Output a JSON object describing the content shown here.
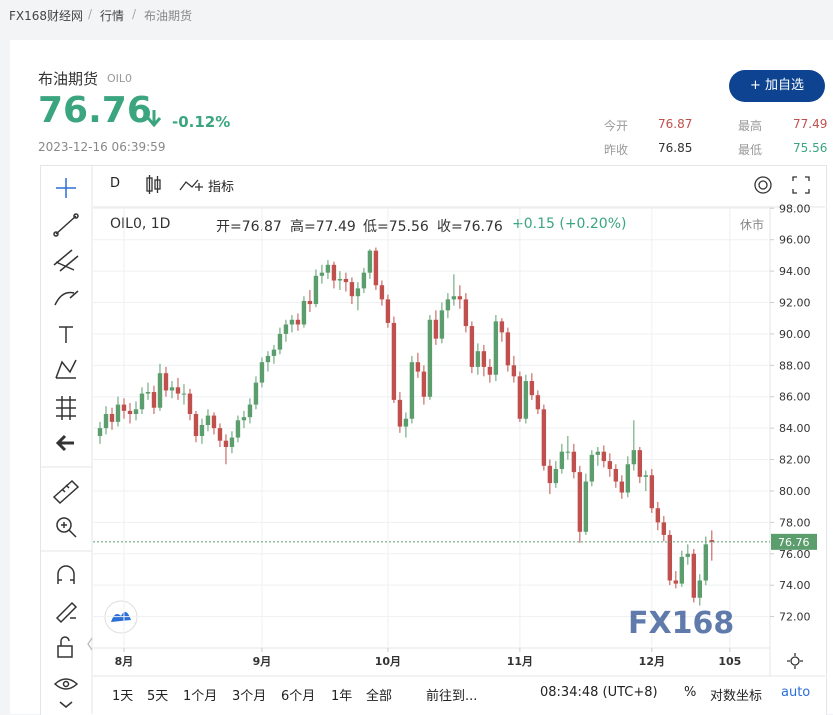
{
  "breadcrumb": [
    "FX168财经网",
    "行情",
    "布油期货"
  ],
  "quote": {
    "name": "布油期货",
    "code": "OIL0",
    "price": "76.76",
    "change": "-0.12%",
    "time": "2023-12-16 06:39:59",
    "button": "+ 加自选",
    "stats": [
      [
        "今开",
        "76.87"
      ],
      [
        "最高",
        "77.49"
      ],
      [
        "昨收",
        "76.85"
      ],
      [
        "最低",
        "75.56"
      ]
    ]
  },
  "toolbar": {
    "interval": "D",
    "indicators": "指标"
  },
  "chart_data": {
    "type": "candlestick",
    "symbol": "OIL0, 1D",
    "ohlc_legend": [
      "开=76.87",
      "高=77.49",
      "低=75.56",
      "收=76.76",
      "+0.15 (+0.20%)"
    ],
    "status": "休市",
    "watermark": "FX168",
    "up_color": "#5b9d6c",
    "down_color": "#c0504d",
    "price_line": 76.76,
    "candles": [
      [
        83.5,
        84.4,
        83.0,
        84.0
      ],
      [
        84.0,
        85.4,
        83.6,
        84.9
      ],
      [
        84.9,
        85.3,
        83.9,
        84.4
      ],
      [
        84.4,
        86.0,
        84.1,
        85.5
      ],
      [
        85.5,
        85.9,
        84.6,
        85.1
      ],
      [
        85.1,
        85.6,
        84.3,
        84.9
      ],
      [
        84.9,
        85.7,
        84.5,
        85.2
      ],
      [
        85.2,
        86.6,
        84.9,
        86.2
      ],
      [
        86.2,
        86.9,
        85.8,
        86.3
      ],
      [
        86.3,
        86.7,
        84.9,
        85.3
      ],
      [
        85.3,
        88.1,
        85.1,
        87.5
      ],
      [
        87.5,
        87.9,
        86.0,
        86.4
      ],
      [
        86.4,
        87.0,
        85.9,
        86.6
      ],
      [
        86.6,
        87.2,
        85.8,
        86.2
      ],
      [
        86.2,
        86.8,
        85.5,
        86.2
      ],
      [
        86.2,
        86.5,
        84.5,
        84.9
      ],
      [
        84.9,
        85.1,
        83.1,
        83.5
      ],
      [
        83.5,
        84.6,
        83.0,
        84.2
      ],
      [
        84.2,
        85.2,
        83.8,
        84.8
      ],
      [
        84.8,
        85.0,
        83.6,
        84.0
      ],
      [
        84.0,
        84.3,
        82.8,
        83.2
      ],
      [
        83.2,
        83.6,
        81.7,
        82.8
      ],
      [
        82.8,
        83.8,
        82.4,
        83.4
      ],
      [
        83.4,
        84.8,
        83.1,
        84.5
      ],
      [
        84.5,
        85.1,
        84.0,
        84.7
      ],
      [
        84.7,
        85.9,
        84.3,
        85.5
      ],
      [
        85.5,
        87.3,
        85.2,
        86.9
      ],
      [
        86.9,
        88.5,
        86.6,
        88.2
      ],
      [
        88.2,
        88.9,
        87.6,
        88.6
      ],
      [
        88.6,
        89.3,
        88.1,
        89.0
      ],
      [
        89.0,
        90.4,
        88.7,
        90.0
      ],
      [
        90.0,
        90.9,
        89.5,
        90.6
      ],
      [
        90.6,
        91.2,
        90.1,
        90.9
      ],
      [
        90.9,
        91.3,
        90.2,
        90.6
      ],
      [
        90.6,
        92.4,
        90.4,
        92.1
      ],
      [
        92.1,
        92.8,
        91.4,
        91.9
      ],
      [
        91.9,
        94.1,
        91.7,
        93.7
      ],
      [
        93.7,
        94.4,
        93.2,
        93.9
      ],
      [
        93.9,
        94.7,
        93.5,
        94.4
      ],
      [
        94.4,
        94.6,
        92.9,
        93.4
      ],
      [
        93.4,
        94.0,
        92.8,
        93.5
      ],
      [
        93.5,
        93.9,
        92.7,
        93.3
      ],
      [
        93.3,
        93.6,
        91.9,
        92.4
      ],
      [
        92.4,
        93.3,
        91.5,
        92.9
      ],
      [
        92.9,
        94.2,
        92.6,
        93.9
      ],
      [
        93.9,
        95.4,
        93.5,
        95.3
      ],
      [
        95.3,
        95.5,
        92.8,
        93.1
      ],
      [
        93.1,
        93.4,
        91.8,
        92.2
      ],
      [
        92.2,
        92.5,
        90.4,
        90.7
      ],
      [
        90.7,
        91.1,
        85.6,
        85.8
      ],
      [
        85.8,
        86.3,
        83.7,
        84.1
      ],
      [
        84.1,
        85.0,
        83.4,
        84.6
      ],
      [
        84.6,
        88.6,
        84.3,
        88.2
      ],
      [
        88.2,
        88.8,
        87.2,
        87.6
      ],
      [
        87.6,
        88.0,
        85.5,
        86.0
      ],
      [
        86.0,
        91.2,
        85.8,
        90.9
      ],
      [
        90.9,
        91.5,
        89.3,
        89.7
      ],
      [
        89.7,
        92.0,
        89.4,
        91.5
      ],
      [
        91.5,
        92.6,
        91.0,
        92.2
      ],
      [
        92.2,
        93.8,
        91.8,
        92.4
      ],
      [
        92.4,
        93.1,
        91.6,
        92.2
      ],
      [
        92.2,
        92.6,
        90.1,
        90.5
      ],
      [
        90.5,
        90.8,
        87.5,
        87.9
      ],
      [
        87.9,
        89.4,
        87.4,
        88.9
      ],
      [
        88.9,
        89.3,
        87.3,
        87.9
      ],
      [
        87.9,
        88.4,
        86.9,
        87.4
      ],
      [
        87.4,
        91.2,
        87.0,
        90.8
      ],
      [
        90.8,
        91.0,
        89.5,
        90.1
      ],
      [
        90.1,
        90.4,
        87.6,
        88.0
      ],
      [
        88.0,
        88.6,
        86.9,
        87.3
      ],
      [
        87.3,
        87.6,
        84.4,
        84.6
      ],
      [
        84.6,
        87.4,
        84.3,
        87.0
      ],
      [
        87.0,
        87.5,
        85.8,
        86.1
      ],
      [
        86.1,
        86.4,
        84.9,
        85.2
      ],
      [
        85.2,
        85.5,
        81.3,
        81.6
      ],
      [
        81.6,
        82.0,
        79.8,
        80.5
      ],
      [
        80.5,
        81.9,
        80.2,
        81.4
      ],
      [
        81.4,
        83.0,
        81.1,
        82.5
      ],
      [
        82.5,
        83.5,
        82.0,
        82.5
      ],
      [
        82.5,
        83.0,
        80.8,
        81.2
      ],
      [
        81.2,
        81.6,
        76.7,
        77.4
      ],
      [
        77.4,
        81.1,
        77.2,
        80.6
      ],
      [
        80.6,
        82.6,
        80.3,
        82.3
      ],
      [
        82.3,
        82.8,
        81.6,
        82.5
      ],
      [
        82.5,
        82.9,
        81.5,
        81.9
      ],
      [
        81.9,
        82.4,
        80.9,
        81.4
      ],
      [
        81.4,
        81.7,
        80.2,
        80.6
      ],
      [
        80.6,
        81.0,
        79.5,
        79.9
      ],
      [
        79.9,
        82.2,
        79.6,
        81.7
      ],
      [
        81.7,
        84.5,
        81.3,
        82.6
      ],
      [
        82.6,
        82.8,
        80.5,
        80.9
      ],
      [
        80.9,
        81.3,
        80.0,
        81.0
      ],
      [
        81.0,
        81.4,
        78.6,
        78.9
      ],
      [
        78.9,
        79.3,
        77.5,
        78.0
      ],
      [
        78.0,
        78.4,
        76.8,
        77.2
      ],
      [
        77.2,
        77.5,
        74.0,
        74.3
      ],
      [
        74.3,
        74.9,
        73.8,
        74.1
      ],
      [
        74.1,
        76.2,
        73.9,
        75.8
      ],
      [
        75.8,
        76.6,
        75.3,
        76.0
      ],
      [
        76.0,
        76.3,
        72.9,
        73.2
      ],
      [
        73.2,
        74.7,
        72.7,
        74.3
      ],
      [
        74.3,
        77.1,
        74.0,
        76.6
      ],
      [
        76.87,
        77.49,
        75.56,
        76.76
      ]
    ],
    "xlim": [
      -0.5,
      111.7
    ],
    "xticks": [
      {
        "value": 4,
        "label": "8月"
      },
      {
        "value": 27,
        "label": "9月"
      },
      {
        "value": 48,
        "label": "10月"
      },
      {
        "value": 70,
        "label": "11月"
      },
      {
        "value": 92,
        "label": "12月"
      },
      105
    ],
    "ylim": [
      70,
      98.4
    ],
    "yticks": [
      {
        "value": 72,
        "label": "72.00"
      },
      {
        "value": 74,
        "label": "74.00"
      },
      {
        "value": 76,
        "label": "76.00"
      },
      {
        "value": 78,
        "label": "78.00"
      },
      {
        "value": 80,
        "label": "80.00"
      },
      {
        "value": 82,
        "label": "82.00"
      },
      {
        "value": 84,
        "label": "84.00"
      },
      {
        "value": 86,
        "label": "86.00"
      },
      {
        "value": 88,
        "label": "88.00"
      },
      {
        "value": 90,
        "label": "90.00"
      },
      {
        "value": 92,
        "label": "92.00"
      },
      {
        "value": 94,
        "label": "94.00"
      },
      {
        "value": 96,
        "label": "96.00"
      },
      {
        "value": 98,
        "label": "98.00"
      }
    ],
    "grid": true
  },
  "bottom_bar": {
    "ranges": [
      "1天",
      "5天",
      "1个月",
      "3个月",
      "6个月",
      "1年",
      "全部"
    ],
    "goto": "前往到...",
    "time": "08:34:48 (UTC+8)",
    "percent": "%",
    "log": "对数坐标",
    "auto": "auto"
  }
}
